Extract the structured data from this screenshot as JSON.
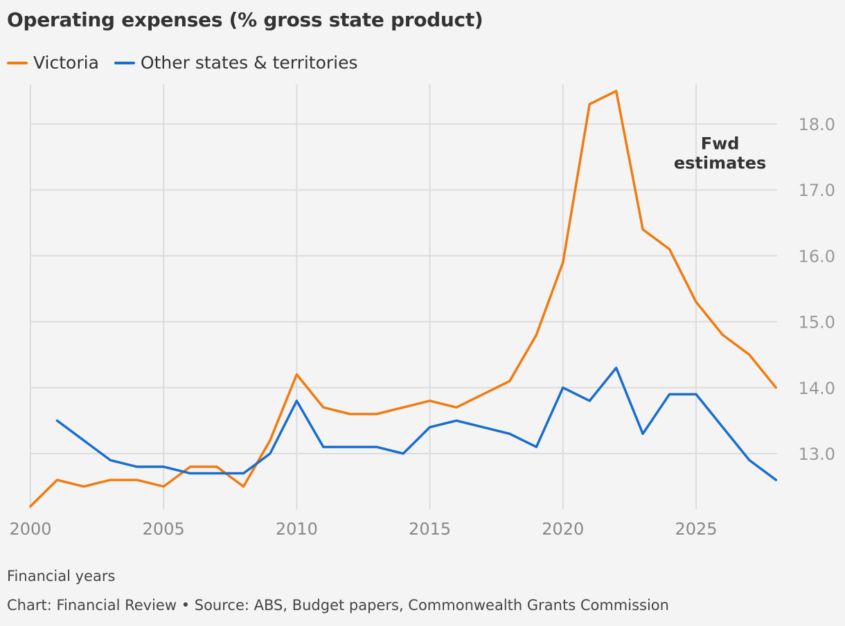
{
  "chart_data": {
    "type": "line",
    "title": "Operating expenses (% gross state product)",
    "xlabel": "Financial years",
    "ylabel": "",
    "xlim": [
      2000,
      2028
    ],
    "ylim": [
      12.15,
      18.6
    ],
    "x_ticks": [
      2000,
      2005,
      2010,
      2015,
      2020,
      2025
    ],
    "x_tick_labels": [
      "2000",
      "2005",
      "2010",
      "2015",
      "2020",
      "2025"
    ],
    "y_ticks": [
      13,
      14,
      15,
      16,
      17,
      18
    ],
    "y_tick_labels": [
      "13.0",
      "14.0",
      "15.0",
      "16.0",
      "17.0",
      "18.0"
    ],
    "y_axis_side": "right",
    "grid": true,
    "legend_placement": "top-left",
    "annotation": {
      "text_line1": "Fwd",
      "text_line2": "estimates",
      "x": 2025.9,
      "y": 17.3
    },
    "series": [
      {
        "name": "Victoria",
        "color": "#f07b0f",
        "x": [
          2000,
          2001,
          2002,
          2003,
          2004,
          2005,
          2006,
          2007,
          2008,
          2009,
          2010,
          2011,
          2012,
          2013,
          2014,
          2015,
          2016,
          2017,
          2018,
          2019,
          2020,
          2021,
          2022,
          2023,
          2024,
          2025,
          2026,
          2027,
          2028
        ],
        "values": [
          12.2,
          12.6,
          12.5,
          12.6,
          12.6,
          12.5,
          12.8,
          12.8,
          12.5,
          13.2,
          14.2,
          13.7,
          13.6,
          13.6,
          13.7,
          13.8,
          13.7,
          13.9,
          14.1,
          14.8,
          15.9,
          18.3,
          18.5,
          16.4,
          16.1,
          15.3,
          14.8,
          14.5,
          14.0
        ]
      },
      {
        "name": "Other states & territories",
        "color": "#1a6dce",
        "x": [
          2001,
          2002,
          2003,
          2004,
          2005,
          2006,
          2007,
          2008,
          2009,
          2010,
          2011,
          2012,
          2013,
          2014,
          2015,
          2016,
          2017,
          2018,
          2019,
          2020,
          2021,
          2022,
          2023,
          2024,
          2025,
          2026,
          2027,
          2028
        ],
        "values": [
          13.5,
          13.2,
          12.9,
          12.8,
          12.8,
          12.7,
          12.7,
          12.7,
          13.0,
          13.8,
          13.1,
          13.1,
          13.1,
          13.0,
          13.4,
          13.5,
          13.4,
          13.3,
          13.1,
          14.0,
          13.8,
          14.3,
          13.3,
          13.9,
          13.9,
          13.4,
          12.9,
          12.6
        ]
      }
    ]
  },
  "footer": {
    "xlabel": "Financial years",
    "source": "Chart: Financial Review • Source: ABS, Budget papers, Commonwealth Grants Commission"
  }
}
